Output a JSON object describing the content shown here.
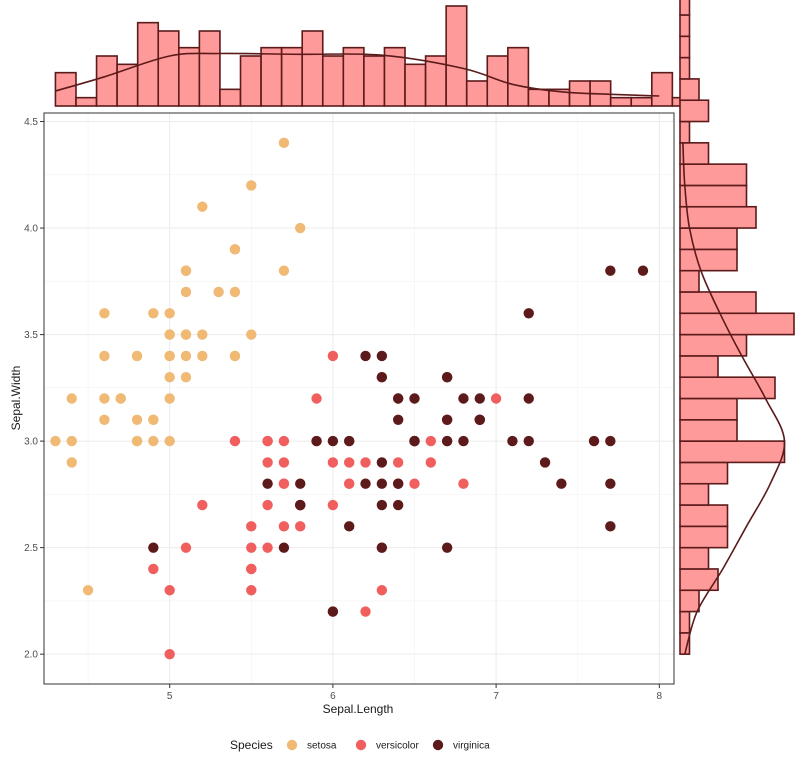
{
  "chart_data": {
    "type": "scatter",
    "title": "",
    "xlabel": "Sepal.Length",
    "ylabel": "Sepal.Width",
    "xlim": [
      4.23,
      8.09
    ],
    "ylim": [
      1.86,
      4.54
    ],
    "x_ticks": [
      5,
      6,
      7,
      8
    ],
    "x_tick_labels": [
      "5",
      "6",
      "7",
      "8"
    ],
    "y_ticks": [
      2.0,
      2.5,
      3.0,
      3.5,
      4.0,
      4.5
    ],
    "y_tick_labels": [
      "2.0",
      "2.5",
      "3.0",
      "3.5",
      "4.0",
      "4.5"
    ],
    "grid": true,
    "legend": {
      "title": "Species",
      "placement": "bottom",
      "entries": [
        {
          "label": "setosa",
          "color": "#F0B974"
        },
        {
          "label": "versicolor",
          "color": "#F05E5E"
        },
        {
          "label": "virginica",
          "color": "#5C1A1A"
        }
      ]
    },
    "series": [
      {
        "name": "setosa",
        "color": "#F0B974",
        "points": [
          [
            5.1,
            3.5
          ],
          [
            4.9,
            3.0
          ],
          [
            4.7,
            3.2
          ],
          [
            4.6,
            3.1
          ],
          [
            5.0,
            3.6
          ],
          [
            5.4,
            3.9
          ],
          [
            4.6,
            3.4
          ],
          [
            5.0,
            3.4
          ],
          [
            4.4,
            2.9
          ],
          [
            4.9,
            3.1
          ],
          [
            5.4,
            3.7
          ],
          [
            4.8,
            3.4
          ],
          [
            4.8,
            3.0
          ],
          [
            4.3,
            3.0
          ],
          [
            5.8,
            4.0
          ],
          [
            5.7,
            4.4
          ],
          [
            5.4,
            3.9
          ],
          [
            5.1,
            3.5
          ],
          [
            5.7,
            3.8
          ],
          [
            5.1,
            3.8
          ],
          [
            5.4,
            3.4
          ],
          [
            5.1,
            3.7
          ],
          [
            4.6,
            3.6
          ],
          [
            5.1,
            3.3
          ],
          [
            4.8,
            3.4
          ],
          [
            5.0,
            3.0
          ],
          [
            5.0,
            3.4
          ],
          [
            5.2,
            3.5
          ],
          [
            5.2,
            3.4
          ],
          [
            4.7,
            3.2
          ],
          [
            4.8,
            3.1
          ],
          [
            5.4,
            3.4
          ],
          [
            5.2,
            4.1
          ],
          [
            5.5,
            4.2
          ],
          [
            4.9,
            3.1
          ],
          [
            5.0,
            3.2
          ],
          [
            5.5,
            3.5
          ],
          [
            4.9,
            3.6
          ],
          [
            4.4,
            3.0
          ],
          [
            5.1,
            3.4
          ],
          [
            5.0,
            3.5
          ],
          [
            4.5,
            2.3
          ],
          [
            4.4,
            3.2
          ],
          [
            5.0,
            3.5
          ],
          [
            5.1,
            3.8
          ],
          [
            4.8,
            3.0
          ],
          [
            5.1,
            3.8
          ],
          [
            4.6,
            3.2
          ],
          [
            5.3,
            3.7
          ],
          [
            5.0,
            3.3
          ]
        ]
      },
      {
        "name": "versicolor",
        "color": "#F05E5E",
        "points": [
          [
            7.0,
            3.2
          ],
          [
            6.4,
            3.2
          ],
          [
            6.9,
            3.1
          ],
          [
            5.5,
            2.3
          ],
          [
            6.5,
            2.8
          ],
          [
            5.7,
            2.8
          ],
          [
            6.3,
            3.3
          ],
          [
            4.9,
            2.4
          ],
          [
            6.6,
            2.9
          ],
          [
            5.2,
            2.7
          ],
          [
            5.0,
            2.0
          ],
          [
            5.9,
            3.0
          ],
          [
            6.0,
            2.2
          ],
          [
            6.1,
            2.9
          ],
          [
            5.6,
            2.9
          ],
          [
            6.7,
            3.1
          ],
          [
            5.6,
            3.0
          ],
          [
            5.8,
            2.7
          ],
          [
            6.2,
            2.2
          ],
          [
            5.6,
            2.5
          ],
          [
            5.9,
            3.2
          ],
          [
            6.1,
            2.8
          ],
          [
            6.3,
            2.5
          ],
          [
            6.1,
            2.8
          ],
          [
            6.4,
            2.9
          ],
          [
            6.6,
            3.0
          ],
          [
            6.8,
            2.8
          ],
          [
            6.7,
            3.0
          ],
          [
            6.0,
            2.9
          ],
          [
            5.7,
            2.6
          ],
          [
            5.5,
            2.4
          ],
          [
            5.5,
            2.4
          ],
          [
            5.8,
            2.7
          ],
          [
            6.0,
            2.7
          ],
          [
            5.4,
            3.0
          ],
          [
            6.0,
            3.4
          ],
          [
            6.7,
            3.1
          ],
          [
            6.3,
            2.3
          ],
          [
            5.6,
            3.0
          ],
          [
            5.5,
            2.5
          ],
          [
            5.5,
            2.6
          ],
          [
            6.1,
            3.0
          ],
          [
            5.8,
            2.6
          ],
          [
            5.0,
            2.3
          ],
          [
            5.6,
            2.7
          ],
          [
            5.7,
            3.0
          ],
          [
            5.7,
            2.9
          ],
          [
            6.2,
            2.9
          ],
          [
            5.1,
            2.5
          ],
          [
            5.7,
            2.8
          ]
        ]
      },
      {
        "name": "virginica",
        "color": "#5C1A1A",
        "points": [
          [
            6.3,
            3.3
          ],
          [
            5.8,
            2.7
          ],
          [
            7.1,
            3.0
          ],
          [
            6.3,
            2.9
          ],
          [
            6.5,
            3.0
          ],
          [
            7.6,
            3.0
          ],
          [
            4.9,
            2.5
          ],
          [
            7.3,
            2.9
          ],
          [
            6.7,
            2.5
          ],
          [
            7.2,
            3.6
          ],
          [
            6.5,
            3.2
          ],
          [
            6.4,
            2.7
          ],
          [
            6.8,
            3.0
          ],
          [
            5.7,
            2.5
          ],
          [
            5.8,
            2.8
          ],
          [
            6.4,
            3.2
          ],
          [
            6.5,
            3.0
          ],
          [
            7.7,
            3.8
          ],
          [
            7.7,
            2.6
          ],
          [
            6.0,
            2.2
          ],
          [
            6.9,
            3.2
          ],
          [
            5.6,
            2.8
          ],
          [
            7.7,
            2.8
          ],
          [
            6.3,
            2.7
          ],
          [
            6.7,
            3.3
          ],
          [
            7.2,
            3.2
          ],
          [
            6.2,
            2.8
          ],
          [
            6.1,
            3.0
          ],
          [
            6.4,
            2.8
          ],
          [
            7.2,
            3.0
          ],
          [
            7.4,
            2.8
          ],
          [
            7.9,
            3.8
          ],
          [
            6.4,
            2.8
          ],
          [
            6.3,
            2.8
          ],
          [
            6.1,
            2.6
          ],
          [
            7.7,
            3.0
          ],
          [
            6.3,
            3.4
          ],
          [
            6.4,
            3.1
          ],
          [
            6.0,
            3.0
          ],
          [
            6.9,
            3.1
          ],
          [
            6.7,
            3.1
          ],
          [
            6.9,
            3.1
          ],
          [
            5.8,
            2.7
          ],
          [
            6.8,
            3.2
          ],
          [
            6.7,
            3.3
          ],
          [
            6.7,
            3.0
          ],
          [
            6.3,
            2.5
          ],
          [
            6.5,
            3.0
          ],
          [
            6.2,
            3.4
          ],
          [
            5.9,
            3.0
          ]
        ]
      }
    ],
    "marginal_top": {
      "type": "histogram_density",
      "variable": "Sepal.Length",
      "bin_width": 0.126,
      "bin_start": 4.3,
      "counts": [
        4,
        1,
        6,
        5,
        10,
        9,
        7,
        9,
        2,
        6,
        7,
        7,
        9,
        6,
        7,
        6,
        7,
        5,
        6,
        12,
        3,
        6,
        7,
        2,
        2,
        3,
        3,
        1,
        1,
        4,
        1
      ],
      "density": [
        [
          4.3,
          1.8
        ],
        [
          4.6,
          3.5
        ],
        [
          5.0,
          6.0
        ],
        [
          5.3,
          6.3
        ],
        [
          5.8,
          6.2
        ],
        [
          6.3,
          6.1
        ],
        [
          6.8,
          4.5
        ],
        [
          7.1,
          2.6
        ],
        [
          7.4,
          1.7
        ],
        [
          7.7,
          1.4
        ],
        [
          8.0,
          1.2
        ]
      ],
      "fill": "#FF9A9A",
      "stroke": "#5C1A1A"
    },
    "marginal_right": {
      "type": "histogram_density",
      "variable": "Sepal.Width",
      "bin_width": 0.1,
      "bin_start": 2.0,
      "counts": [
        1,
        1,
        2,
        4,
        3,
        5,
        5,
        3,
        5,
        11,
        6,
        6,
        10,
        4,
        7,
        12,
        8,
        2,
        6,
        6,
        8,
        7,
        7,
        3,
        1,
        3,
        2,
        1,
        1,
        1,
        1,
        1,
        1,
        1
      ],
      "density": [
        [
          2.0,
          0.5
        ],
        [
          2.2,
          1.8
        ],
        [
          2.4,
          4.5
        ],
        [
          2.6,
          7.0
        ],
        [
          2.8,
          9.5
        ],
        [
          3.0,
          11.0
        ],
        [
          3.2,
          9.0
        ],
        [
          3.4,
          6.5
        ],
        [
          3.6,
          4.2
        ],
        [
          3.8,
          2.2
        ],
        [
          4.0,
          1.0
        ],
        [
          4.2,
          0.5
        ],
        [
          4.4,
          0.3
        ]
      ],
      "fill": "#FF9A9A",
      "stroke": "#5C1A1A"
    }
  }
}
